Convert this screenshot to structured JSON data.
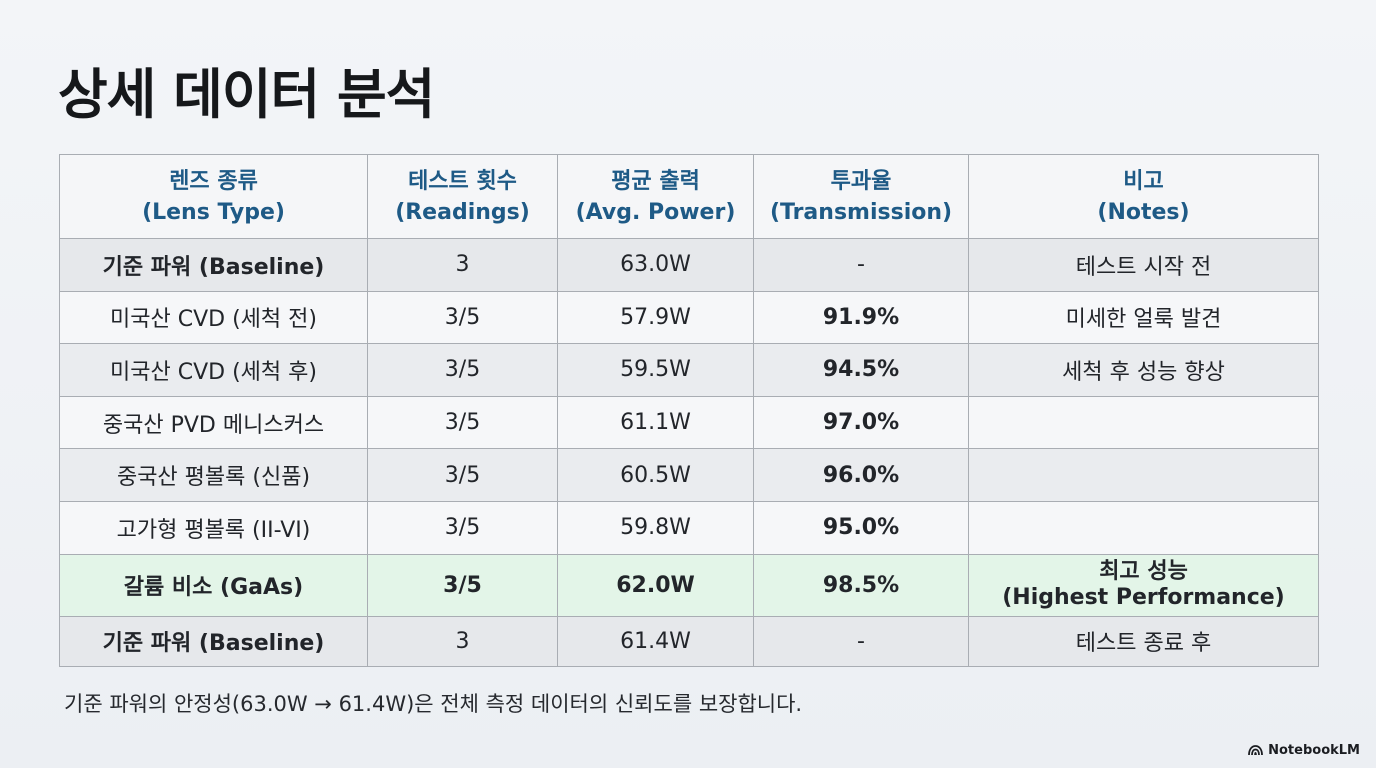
{
  "title": "상세 데이터 분석",
  "table": {
    "headers": [
      {
        "ko": "렌즈 종류",
        "en": "(Lens Type)"
      },
      {
        "ko": "테스트 횟수",
        "en": "(Readings)"
      },
      {
        "ko": "평균 출력",
        "en": "(Avg. Power)"
      },
      {
        "ko": "투과율",
        "en": "(Transmission)"
      },
      {
        "ko": "비고",
        "en": "(Notes)"
      }
    ],
    "rows": [
      {
        "lens": "기준 파워 (Baseline)",
        "readings": "3",
        "power": "63.0W",
        "transmission": "-",
        "notes": "테스트 시작 전"
      },
      {
        "lens": "미국산 CVD (세척 전)",
        "readings": "3/5",
        "power": "57.9W",
        "transmission": "91.9%",
        "notes": "미세한 얼룩 발견"
      },
      {
        "lens": "미국산 CVD (세척 후)",
        "readings": "3/5",
        "power": "59.5W",
        "transmission": "94.5%",
        "notes": "세척 후 성능 향상"
      },
      {
        "lens": "중국산 PVD 메니스커스",
        "readings": "3/5",
        "power": "61.1W",
        "transmission": "97.0%",
        "notes": ""
      },
      {
        "lens": "중국산 평볼록 (신품)",
        "readings": "3/5",
        "power": "60.5W",
        "transmission": "96.0%",
        "notes": ""
      },
      {
        "lens": "고가형 평볼록 (II-VI)",
        "readings": "3/5",
        "power": "59.8W",
        "transmission": "95.0%",
        "notes": ""
      },
      {
        "lens": "갈륨 비소 (GaAs)",
        "readings": "3/5",
        "power": "62.0W",
        "transmission": "98.5%",
        "notes_line1": "최고 성능",
        "notes_line2": "(Highest Performance)"
      },
      {
        "lens": "기준 파워 (Baseline)",
        "readings": "3",
        "power": "61.4W",
        "transmission": "-",
        "notes": "테스트 종료 후"
      }
    ]
  },
  "footnote": "기준 파워의 안정성(63.0W → 61.4W)은 전체 측정 데이터의 신뢰도를 보장합니다.",
  "brand": "NotebookLM",
  "colors": {
    "header_text": "#1e5a86",
    "highlight_row": "#e3f5e8",
    "grey_row": "#e6e8eb"
  }
}
